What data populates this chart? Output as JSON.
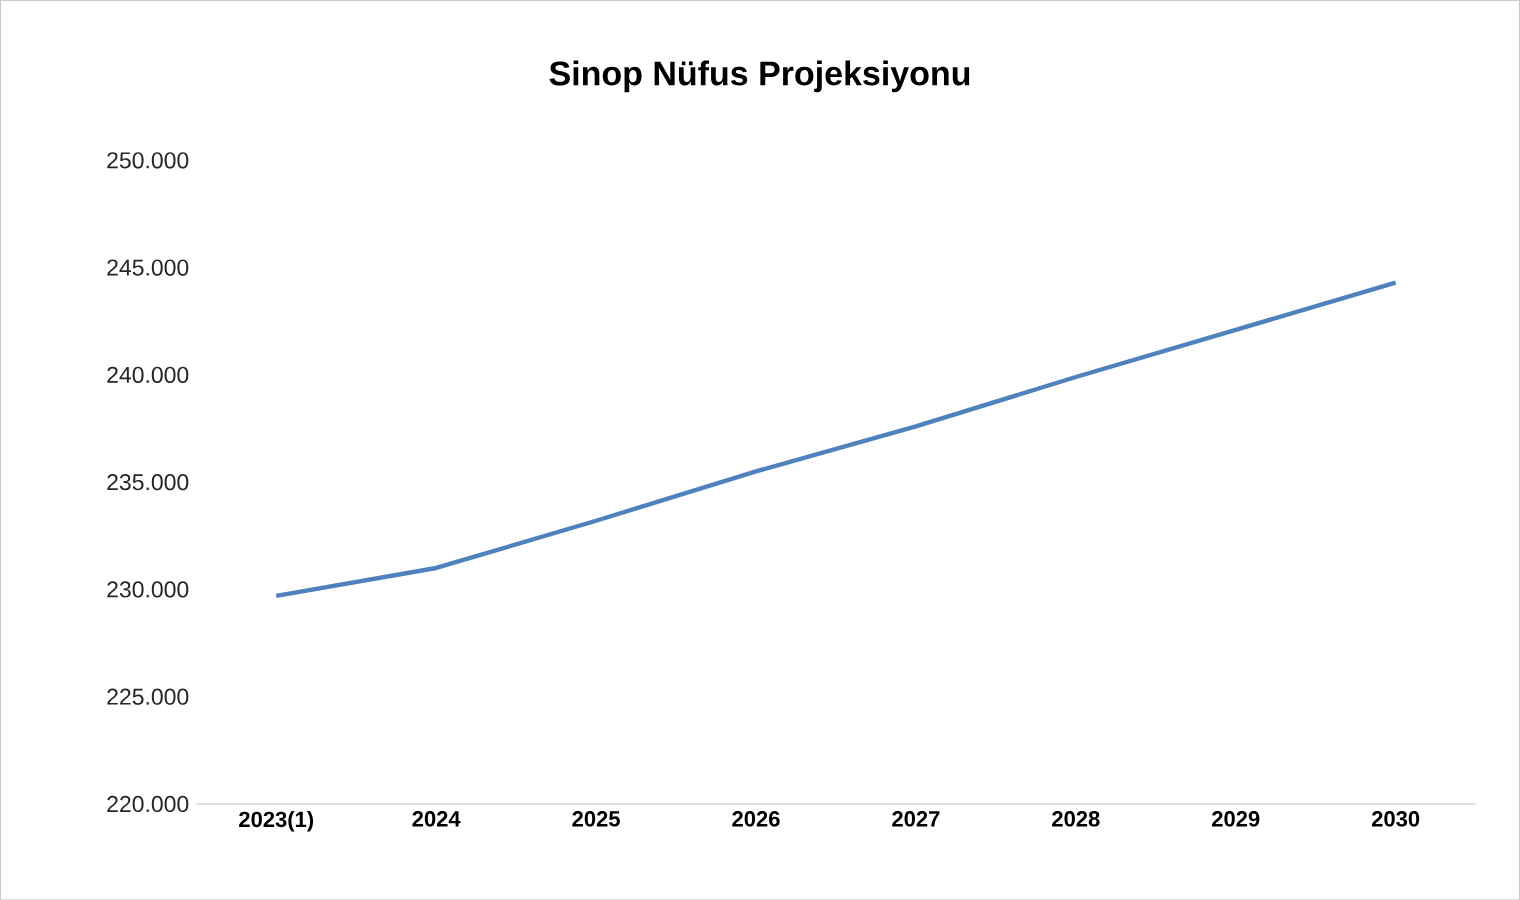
{
  "chart_data": {
    "type": "line",
    "title": "Sinop Nüfus Projeksiyonu",
    "categories": [
      "2023(1)",
      "2024",
      "2025",
      "2026",
      "2027",
      "2028",
      "2029",
      "2030"
    ],
    "series": [
      {
        "color": "#4f81bd",
        "values": [
          229700,
          231000,
          233200,
          235500,
          237600,
          239900,
          242100,
          244300
        ]
      }
    ],
    "ylim": [
      220000,
      250000
    ],
    "yticks": [
      {
        "value": 220000,
        "label": "220.000"
      },
      {
        "value": 225000,
        "label": "225.000"
      },
      {
        "value": 230000,
        "label": "230.000"
      },
      {
        "value": 235000,
        "label": "235.000"
      },
      {
        "value": 240000,
        "label": "240.000"
      },
      {
        "value": 245000,
        "label": "245.000"
      },
      {
        "value": 250000,
        "label": "250.000"
      }
    ],
    "grid": false,
    "marker": "none",
    "line_style": "solid"
  }
}
